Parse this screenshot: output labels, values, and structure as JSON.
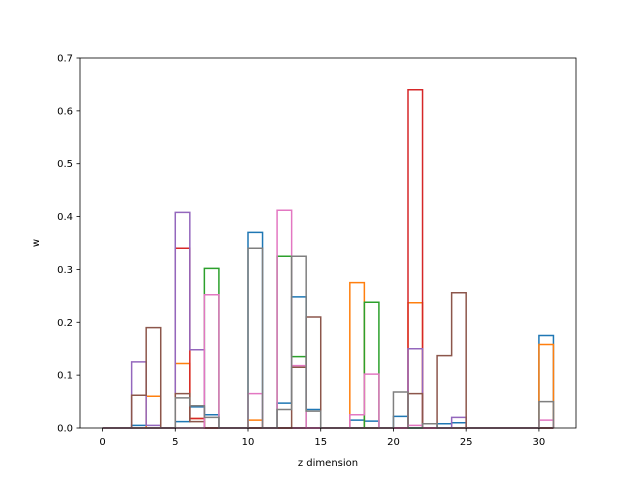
{
  "chart_data": {
    "type": "step-histogram",
    "xlabel": "z dimension",
    "ylabel": "w",
    "xlim": [
      -1.55,
      32.55
    ],
    "ylim": [
      0,
      0.7
    ],
    "xticks": [
      0,
      5,
      10,
      15,
      20,
      25,
      30
    ],
    "yticks": [
      0.0,
      0.1,
      0.2,
      0.3,
      0.4,
      0.5,
      0.6,
      0.7
    ],
    "ytick_labels": [
      "0.0",
      "0.1",
      "0.2",
      "0.3",
      "0.4",
      "0.5",
      "0.6",
      "0.7"
    ],
    "bin_start": 0,
    "bin_end": 31,
    "series": [
      {
        "color": "#1f77b4",
        "values": {
          "2": 0.005,
          "5": 0.012,
          "6": 0.04,
          "7": 0.025,
          "10": 0.37,
          "12": 0.047,
          "13": 0.248,
          "14": 0.035,
          "17": 0.015,
          "18": 0.013,
          "20": 0.022,
          "23": 0.008,
          "24": 0.01,
          "30": 0.175
        }
      },
      {
        "color": "#ff7f0e",
        "values": {
          "3": 0.06,
          "5": 0.122,
          "6": 0.018,
          "10": 0.015,
          "17": 0.275,
          "21": 0.237,
          "30": 0.158
        }
      },
      {
        "color": "#2ca02c",
        "values": {
          "7": 0.302,
          "12": 0.325,
          "13": 0.135,
          "18": 0.238
        }
      },
      {
        "color": "#d62728",
        "values": {
          "5": 0.34,
          "6": 0.018,
          "21": 0.64
        }
      },
      {
        "color": "#9467bd",
        "values": {
          "2": 0.125,
          "3": 0.005,
          "5": 0.408,
          "6": 0.148,
          "21": 0.15,
          "24": 0.02
        }
      },
      {
        "color": "#8c564b",
        "values": {
          "2": 0.062,
          "3": 0.19,
          "5": 0.065,
          "6": 0.012,
          "13": 0.115,
          "14": 0.21,
          "21": 0.065,
          "23": 0.137,
          "24": 0.256
        }
      },
      {
        "color": "#e377c2",
        "values": {
          "7": 0.252,
          "10": 0.065,
          "12": 0.412,
          "13": 0.118,
          "17": 0.025,
          "18": 0.102,
          "21": 0.005,
          "30": 0.015
        }
      },
      {
        "color": "#7f7f7f",
        "values": {
          "5": 0.057,
          "6": 0.042,
          "7": 0.02,
          "10": 0.34,
          "12": 0.035,
          "13": 0.325,
          "14": 0.032,
          "20": 0.068,
          "22": 0.008,
          "30": 0.05
        }
      }
    ]
  }
}
